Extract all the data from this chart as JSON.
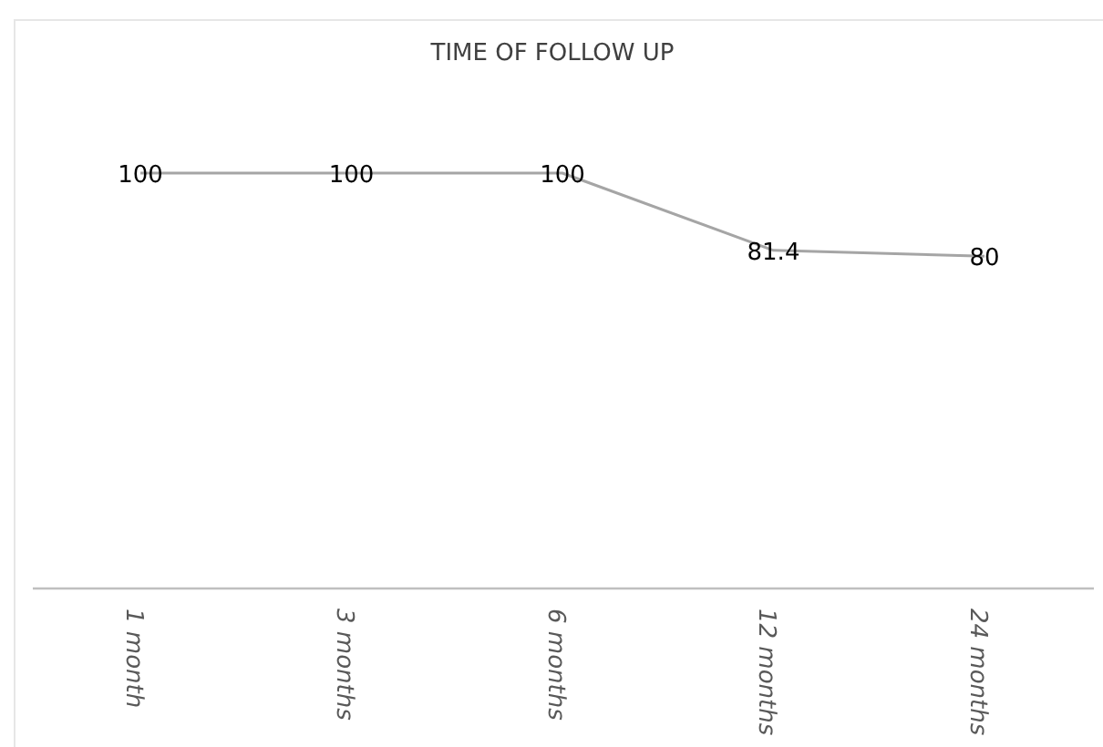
{
  "chart_data": {
    "type": "line",
    "title": "TIME OF FOLLOW UP",
    "categories": [
      "1 month",
      "3 months",
      "6 months",
      "12 months",
      "24 months"
    ],
    "series": [
      {
        "color": "#a5a5a5",
        "values": [
          100,
          100,
          100,
          81.4,
          80
        ]
      }
    ],
    "data_labels": true,
    "marker": "none"
  }
}
